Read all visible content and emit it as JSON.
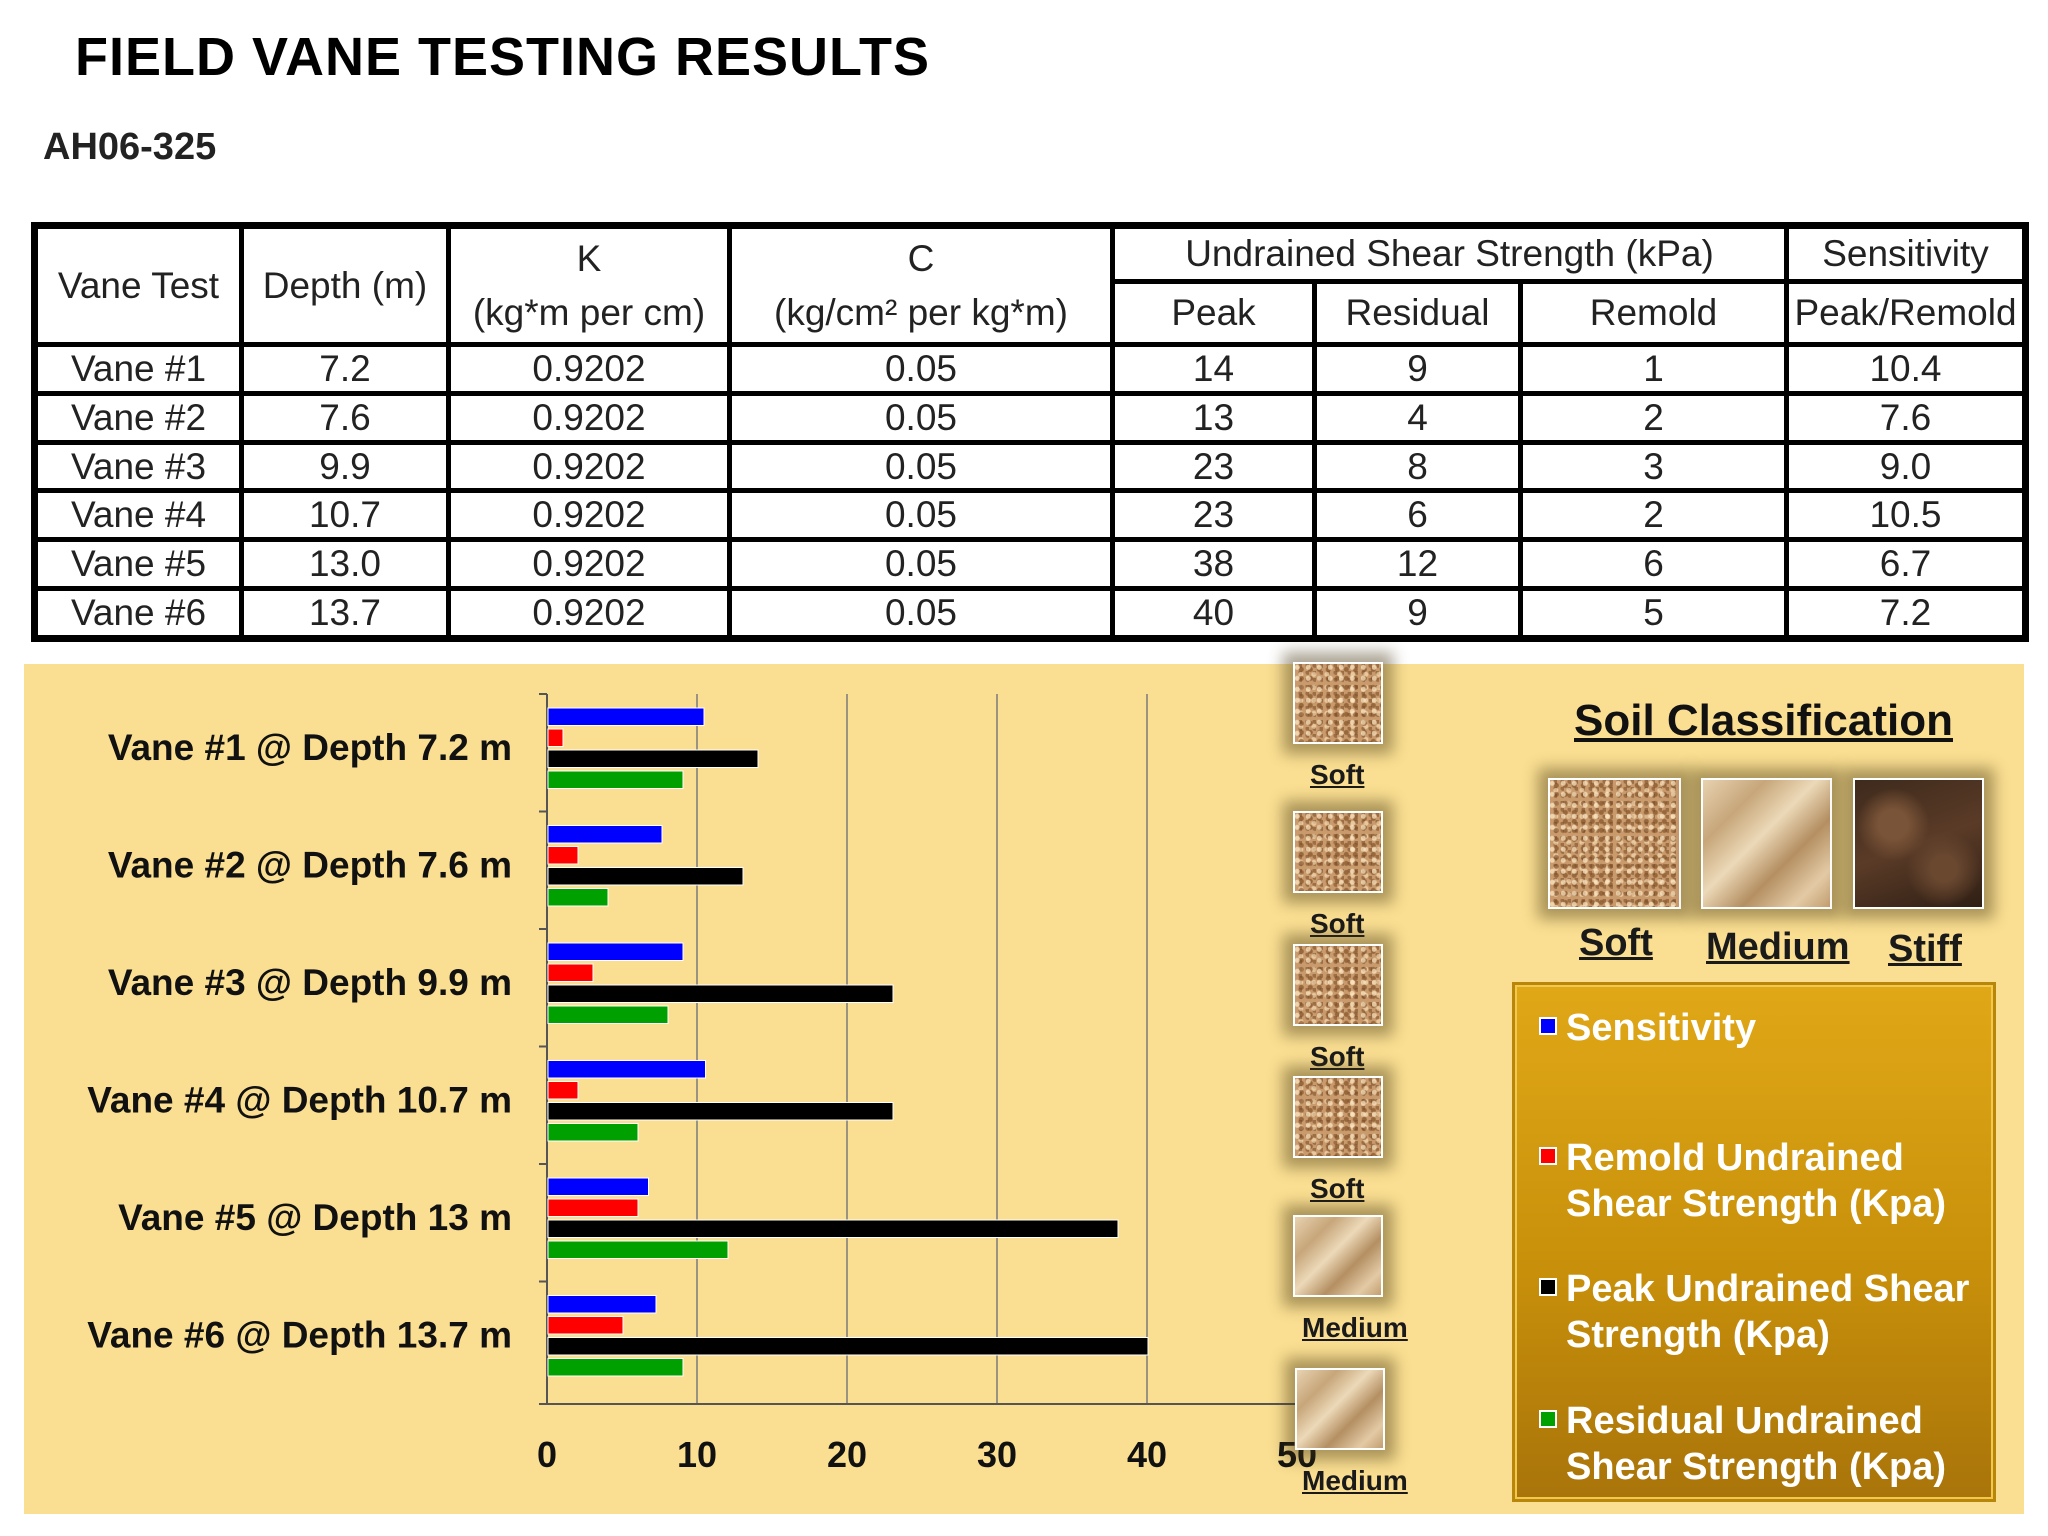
{
  "title": "FIELD VANE TESTING RESULTS",
  "subtitle": "AH06-325",
  "table": {
    "headers": {
      "vane_test": "Vane Test",
      "depth": "Depth (m)",
      "k_top": "K",
      "k_unit": "(kg*m per cm)",
      "c_top": "C",
      "c_unit": "(kg/cm² per kg*m)",
      "shear_group": "Undrained Shear Strength (kPa)",
      "peak": "Peak",
      "residual": "Residual",
      "remold": "Remold",
      "sensitivity_top": "Sensitivity",
      "sensitivity_sub": "Peak/Remold"
    },
    "rows": [
      [
        "Vane #1",
        "7.2",
        "0.9202",
        "0.05",
        "14",
        "9",
        "1",
        "10.4"
      ],
      [
        "Vane #2",
        "7.6",
        "0.9202",
        "0.05",
        "13",
        "4",
        "2",
        "7.6"
      ],
      [
        "Vane #3",
        "9.9",
        "0.9202",
        "0.05",
        "23",
        "8",
        "3",
        "9.0"
      ],
      [
        "Vane #4",
        "10.7",
        "0.9202",
        "0.05",
        "23",
        "6",
        "2",
        "10.5"
      ],
      [
        "Vane #5",
        "13.0",
        "0.9202",
        "0.05",
        "38",
        "12",
        "6",
        "6.7"
      ],
      [
        "Vane #6",
        "13.7",
        "0.9202",
        "0.05",
        "40",
        "9",
        "5",
        "7.2"
      ]
    ]
  },
  "chart_data": {
    "type": "bar",
    "orientation": "horizontal",
    "categories": [
      "Vane #1 @ Depth 7.2 m",
      "Vane #2 @ Depth 7.6 m",
      "Vane #3 @ Depth 9.9 m",
      "Vane #4 @ Depth 10.7 m",
      "Vane #5 @ Depth 13 m",
      "Vane #6 @ Depth 13.7 m"
    ],
    "series": [
      {
        "name": "Sensitivity",
        "color": "#0000ff",
        "values": [
          10.4,
          7.6,
          9.0,
          10.5,
          6.7,
          7.2
        ]
      },
      {
        "name": "Remold Undrained Shear Strength (Kpa)",
        "color": "#ff0000",
        "values": [
          1,
          2,
          3,
          2,
          6,
          5
        ]
      },
      {
        "name": "Peak Undrained Shear Strength (Kpa)",
        "color": "#000000",
        "values": [
          14,
          13,
          23,
          23,
          38,
          40
        ]
      },
      {
        "name": "Residual Undrained Shear Strength (Kpa)",
        "color": "#00a000",
        "values": [
          9,
          4,
          8,
          6,
          12,
          9
        ]
      }
    ],
    "xlim": [
      0,
      50
    ],
    "ticks": [
      "0",
      "10",
      "20",
      "30",
      "40",
      "50"
    ],
    "grid": true,
    "legend_placement": "right",
    "classification_labels": [
      "Soft",
      "Soft",
      "Soft",
      "Soft",
      "Medium",
      "Medium"
    ]
  },
  "soil": {
    "title": "Soil Classification",
    "types": [
      "Soft",
      "Medium",
      "Stiff"
    ]
  },
  "legend": {
    "sensitivity": "Sensitivity",
    "remold_1": "Remold Undrained",
    "remold_2": "Shear Strength (Kpa)",
    "peak_1": "Peak Undrained Shear",
    "peak_2": "Strength (Kpa)",
    "residual_1": "Residual Undrained",
    "residual_2": "Shear Strength (Kpa)"
  },
  "colors": {
    "panel_bg": "#fadf92",
    "legend_bg": "#d49c10",
    "sensitivity": "#0000ff",
    "remold": "#ff0000",
    "peak": "#000000",
    "residual": "#00a000"
  }
}
